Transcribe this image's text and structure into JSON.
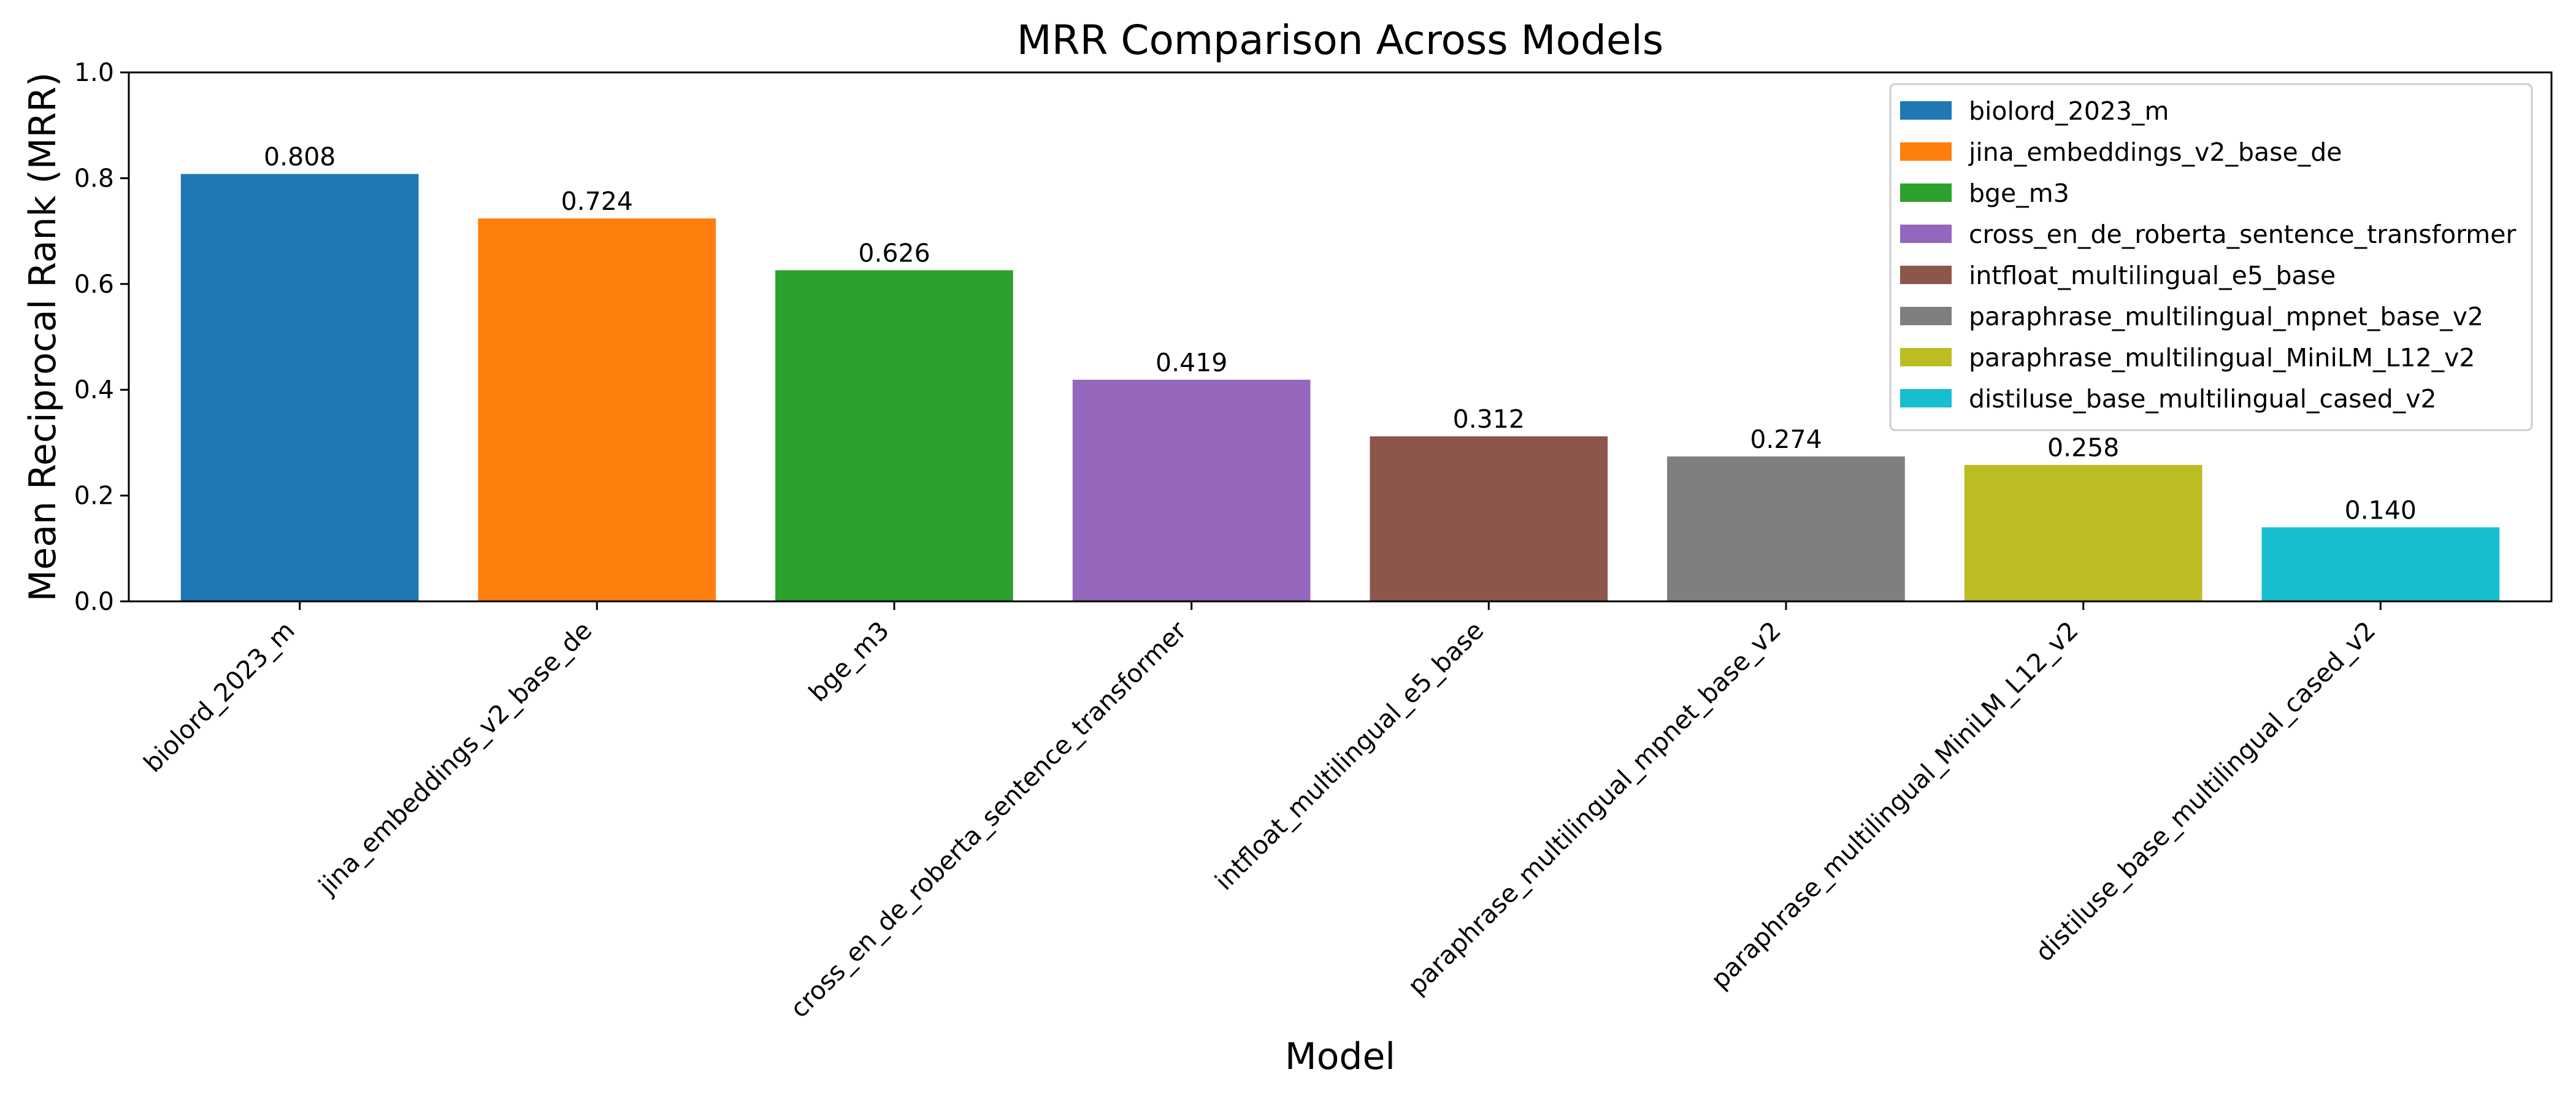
{
  "chart_data": {
    "type": "bar",
    "title": "MRR Comparison Across Models",
    "xlabel": "Model",
    "ylabel": "Mean Reciprocal Rank (MRR)",
    "ylim": [
      0,
      1.0
    ],
    "yticks": [
      "0.0",
      "0.2",
      "0.4",
      "0.6",
      "0.8",
      "1.0"
    ],
    "grid": false,
    "legend_position": "top-right",
    "categories": [
      "biolord_2023_m",
      "jina_embeddings_v2_base_de",
      "bge_m3",
      "cross_en_de_roberta_sentence_transformer",
      "intfloat_multilingual_e5_base",
      "paraphrase_multilingual_mpnet_base_v2",
      "paraphrase_multilingual_MiniLM_L12_v2",
      "distiluse_base_multilingual_cased_v2"
    ],
    "values": [
      0.808,
      0.724,
      0.626,
      0.419,
      0.312,
      0.274,
      0.258,
      0.14
    ],
    "value_labels": [
      "0.808",
      "0.724",
      "0.626",
      "0.419",
      "0.312",
      "0.274",
      "0.258",
      "0.140"
    ],
    "colors": [
      "#1f77b4",
      "#ff7f0e",
      "#2ca02c",
      "#9467bd",
      "#8c564b",
      "#7f7f7f",
      "#bcbd22",
      "#17becf"
    ]
  }
}
